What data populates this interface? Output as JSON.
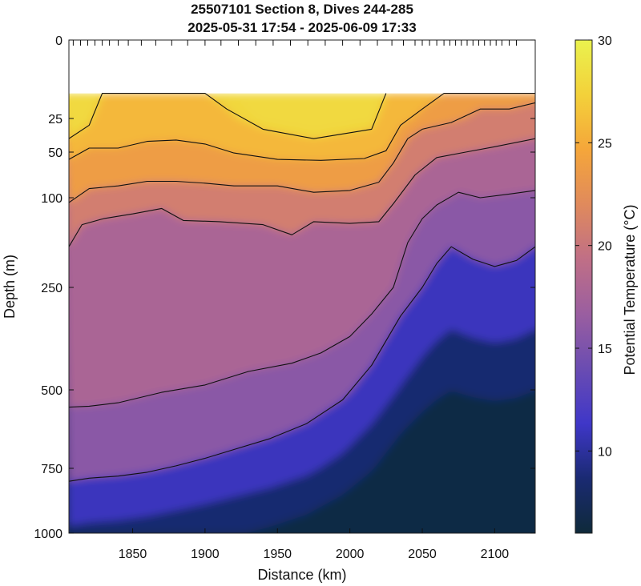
{
  "chart_data": {
    "type": "heatmap",
    "title": [
      "25507101 Section 8, Dives 244-285",
      "2025-05-31 17:54 - 2025-06-09 17:33"
    ],
    "xlabel": "Distance (km)",
    "ylabel": "Depth (m)",
    "colorbar_label": "Potential Temperature (°C)",
    "x_ticks": [
      1850,
      1900,
      1950,
      2000,
      2050,
      2100
    ],
    "y_ticks": [
      0,
      25,
      50,
      100,
      250,
      500,
      750,
      1000
    ],
    "colorbar_ticks": [
      10,
      15,
      20,
      25,
      30
    ],
    "xlim": [
      1806,
      2128
    ],
    "ylim": [
      1000,
      0
    ],
    "clim": [
      6,
      30
    ],
    "colormap": [
      "#0f2a3a",
      "#1a2a72",
      "#3f37c8",
      "#6a4cb2",
      "#9a5ea0",
      "#c06f86",
      "#e08a5c",
      "#f5a63a",
      "#f3d13a",
      "#eaf24e"
    ],
    "dive_distances_km": [
      1809,
      1814,
      1819,
      1824,
      1829,
      1834,
      1840,
      1847,
      1856,
      1866,
      1877,
      1888,
      1900,
      1911,
      1923,
      1935,
      1947,
      1959,
      1971,
      1983,
      1995,
      2007,
      2019,
      2029,
      2037,
      2045,
      2050,
      2055,
      2060,
      2065,
      2069,
      2073,
      2077,
      2081,
      2085,
      2089,
      2093,
      2097,
      2101,
      2105,
      2110,
      2115
    ],
    "isotherms": [
      {
        "temperature": 27,
        "points": [
          [
            1806,
            40
          ],
          [
            1820,
            30
          ],
          [
            1829,
            17
          ],
          [
            1860,
            17
          ],
          [
            1880,
            17
          ],
          [
            1900,
            17
          ],
          [
            1915,
            22
          ],
          [
            1940,
            33
          ],
          [
            1975,
            40
          ],
          [
            2015,
            33
          ],
          [
            2025,
            17
          ]
        ]
      },
      {
        "temperature": 25,
        "points": [
          [
            1806,
            58
          ],
          [
            1820,
            47
          ],
          [
            1840,
            47
          ],
          [
            1860,
            42
          ],
          [
            1880,
            41
          ],
          [
            1900,
            44
          ],
          [
            1920,
            51
          ],
          [
            1950,
            58
          ],
          [
            1980,
            59
          ],
          [
            2010,
            57
          ],
          [
            2025,
            49
          ],
          [
            2035,
            30
          ],
          [
            2050,
            22
          ],
          [
            2065,
            17
          ],
          [
            2090,
            17
          ],
          [
            2110,
            17
          ],
          [
            2128,
            17
          ]
        ]
      },
      {
        "temperature": 23,
        "points": [
          [
            1806,
            108
          ],
          [
            1820,
            90
          ],
          [
            1840,
            87
          ],
          [
            1860,
            82
          ],
          [
            1880,
            82
          ],
          [
            1900,
            84
          ],
          [
            1920,
            87
          ],
          [
            1950,
            87
          ],
          [
            1975,
            94
          ],
          [
            2000,
            92
          ],
          [
            2020,
            83
          ],
          [
            2030,
            62
          ],
          [
            2040,
            40
          ],
          [
            2050,
            33
          ],
          [
            2070,
            28
          ],
          [
            2090,
            22
          ],
          [
            2110,
            22
          ],
          [
            2128,
            20
          ]
        ]
      },
      {
        "temperature": 20,
        "points": [
          [
            1806,
            182
          ],
          [
            1815,
            145
          ],
          [
            1830,
            135
          ],
          [
            1850,
            127
          ],
          [
            1870,
            118
          ],
          [
            1885,
            138
          ],
          [
            1910,
            140
          ],
          [
            1940,
            145
          ],
          [
            1960,
            162
          ],
          [
            1975,
            140
          ],
          [
            2000,
            143
          ],
          [
            2020,
            140
          ],
          [
            2030,
            110
          ],
          [
            2045,
            75
          ],
          [
            2060,
            56
          ],
          [
            2080,
            50
          ],
          [
            2100,
            46
          ],
          [
            2128,
            40
          ]
        ]
      },
      {
        "temperature": 17,
        "points": [
          [
            1806,
            555
          ],
          [
            1820,
            552
          ],
          [
            1840,
            541
          ],
          [
            1870,
            508
          ],
          [
            1900,
            488
          ],
          [
            1930,
            455
          ],
          [
            1960,
            435
          ],
          [
            1980,
            410
          ],
          [
            2000,
            370
          ],
          [
            2015,
            315
          ],
          [
            2030,
            250
          ],
          [
            2040,
            175
          ],
          [
            2050,
            135
          ],
          [
            2060,
            112
          ],
          [
            2075,
            94
          ],
          [
            2090,
            100
          ],
          [
            2110,
            96
          ],
          [
            2128,
            92
          ]
        ]
      },
      {
        "temperature": 15,
        "points": [
          [
            1806,
            800
          ],
          [
            1820,
            788
          ],
          [
            1840,
            780
          ],
          [
            1860,
            765
          ],
          [
            1880,
            742
          ],
          [
            1900,
            718
          ],
          [
            1920,
            690
          ],
          [
            1945,
            655
          ],
          [
            1970,
            608
          ],
          [
            1995,
            532
          ],
          [
            2015,
            440
          ],
          [
            2035,
            320
          ],
          [
            2050,
            250
          ],
          [
            2060,
            210
          ],
          [
            2070,
            182
          ],
          [
            2085,
            203
          ],
          [
            2100,
            215
          ],
          [
            2115,
            205
          ],
          [
            2128,
            182
          ]
        ]
      }
    ]
  }
}
